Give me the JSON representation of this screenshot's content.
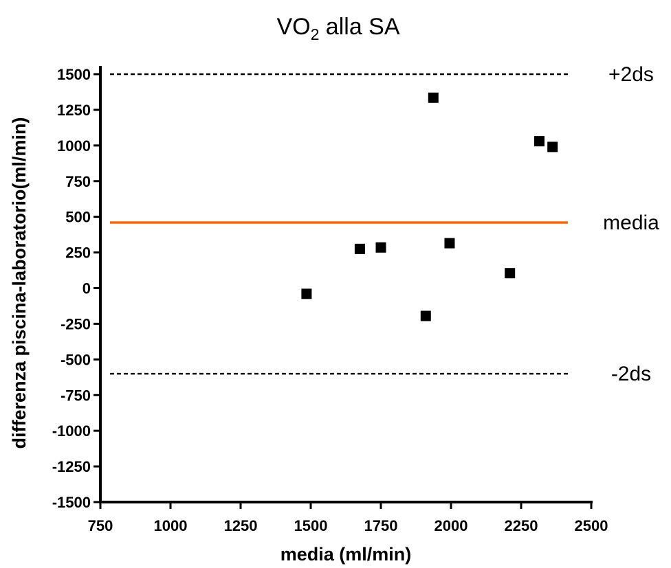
{
  "chart_data": {
    "type": "scatter",
    "title": {
      "main": "VO",
      "sub": "2",
      "rest": " alla SA"
    },
    "xlabel": "media (ml/min)",
    "ylabel": "differenza piscina-laboratorio(ml/min)",
    "xlim": [
      750,
      2500
    ],
    "ylim": [
      -1500,
      1500
    ],
    "xticks": [
      "750",
      "1000",
      "1250",
      "1500",
      "1750",
      "2000",
      "2250",
      "2500"
    ],
    "yticks": [
      "1500",
      "1250",
      "1000",
      "750",
      "500",
      "250",
      "0",
      "-250",
      "-500",
      "-750",
      "-1000",
      "-1250",
      "-1500"
    ],
    "points": [
      {
        "x": 1485,
        "y": -40
      },
      {
        "x": 1675,
        "y": 275
      },
      {
        "x": 1750,
        "y": 285
      },
      {
        "x": 1910,
        "y": -195
      },
      {
        "x": 1937,
        "y": 1335
      },
      {
        "x": 1995,
        "y": 315
      },
      {
        "x": 2210,
        "y": 105
      },
      {
        "x": 2315,
        "y": 1030
      },
      {
        "x": 2362,
        "y": 990
      }
    ],
    "reference_lines": [
      {
        "label": "+2ds",
        "y": 1500,
        "style": "dashed",
        "color": "#000000"
      },
      {
        "label": "media",
        "y": 460,
        "style": "solid",
        "color": "#ff6600"
      },
      {
        "label": "-2ds",
        "y": -600,
        "style": "dashed",
        "color": "#000000"
      }
    ],
    "grid": false,
    "marker": "square",
    "marker_color": "#000000"
  }
}
